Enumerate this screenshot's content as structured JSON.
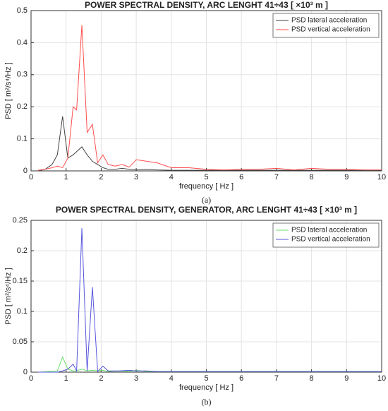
{
  "chart_data": [
    {
      "type": "line",
      "title": "POWER SPECTRAL DENSITY, ARC LENGHT 41÷43 [ ×10³ m ]",
      "x_label": "frequency [ Hz ]",
      "y_label": "PSD [ m²/s⁴/Hz ]",
      "caption": "(a)",
      "x": [
        0.2,
        0.4,
        0.6,
        0.75,
        0.9,
        1.05,
        1.2,
        1.3,
        1.45,
        1.6,
        1.75,
        1.9,
        2.05,
        2.2,
        2.4,
        2.6,
        2.8,
        3.0,
        3.3,
        3.6,
        4.0,
        4.5,
        5,
        5.5,
        6,
        6.5,
        7,
        7.5,
        8,
        8.5,
        9,
        9.5,
        10
      ],
      "series": [
        {
          "name": "PSD lateral acceleration",
          "color": "#444444",
          "values": [
            0,
            0.005,
            0.02,
            0.05,
            0.17,
            0.04,
            0.05,
            0.06,
            0.075,
            0.05,
            0.03,
            0.02,
            0.01,
            0.005,
            0.005,
            0.008,
            0.005,
            0.003,
            0.005,
            0.003,
            0.002,
            0.002,
            0.002,
            0.002,
            0.002,
            0.002,
            0.002,
            0.002,
            0.002,
            0.002,
            0.002,
            0.002,
            0.002
          ]
        },
        {
          "name": "PSD vertical acceleration",
          "color": "#ff4d4d",
          "values": [
            0.002,
            0.005,
            0.01,
            0.015,
            0.01,
            0.04,
            0.2,
            0.19,
            0.455,
            0.12,
            0.145,
            0.025,
            0.05,
            0.02,
            0.015,
            0.02,
            0.012,
            0.035,
            0.03,
            0.025,
            0.01,
            0.01,
            0.005,
            0.003,
            0.005,
            0.005,
            0.008,
            0.003,
            0.008,
            0.005,
            0.005,
            0.003,
            0.003
          ]
        }
      ],
      "xlim": [
        0,
        10
      ],
      "xticks": [
        0,
        1,
        2,
        3,
        4,
        5,
        6,
        7,
        8,
        9,
        10
      ],
      "ylim": [
        0,
        0.5
      ],
      "yticks": [
        0,
        0.1,
        0.2,
        0.3,
        0.4,
        0.5
      ],
      "grid": true,
      "legend": "upper right"
    },
    {
      "type": "line",
      "title": "POWER SPECTRAL DENSITY, GENERATOR, ARC LENGHT  41÷43 [ ×10³ m ]",
      "x_label": "frequency [ Hz ]",
      "y_label": "PSD [ m²/s⁴/Hz ]",
      "caption": "(b)",
      "x": [
        0.2,
        0.5,
        0.75,
        0.9,
        1.05,
        1.2,
        1.3,
        1.45,
        1.6,
        1.75,
        1.9,
        2.05,
        2.2,
        2.5,
        2.8,
        3.0,
        3.3,
        3.6,
        4,
        5,
        6,
        7,
        8,
        9,
        10
      ],
      "series": [
        {
          "name": "PSD lateral acceleration",
          "color": "#66e066",
          "values": [
            0,
            0.001,
            0.002,
            0.025,
            0.005,
            0.002,
            0.002,
            0.005,
            0.002,
            0.003,
            0.002,
            0.003,
            0.001,
            0.002,
            0.001,
            0.003,
            0.001,
            0.001,
            0.001,
            0.001,
            0.001,
            0.001,
            0.001,
            0.001,
            0.001
          ]
        },
        {
          "name": "PSD vertical acceleration",
          "color": "#5555dd",
          "values": [
            0,
            0,
            0,
            0.002,
            0.005,
            0.013,
            0.002,
            0.237,
            0.002,
            0.14,
            0.001,
            0.01,
            0.002,
            0.002,
            0.003,
            0.002,
            0.002,
            0.001,
            0.001,
            0.001,
            0.001,
            0.001,
            0.001,
            0.001,
            0.001
          ]
        }
      ],
      "xlim": [
        0,
        10
      ],
      "xticks": [
        0,
        1,
        2,
        3,
        4,
        5,
        6,
        7,
        8,
        9,
        10
      ],
      "ylim": [
        0,
        0.25
      ],
      "yticks": [
        0,
        0.05,
        0.1,
        0.15,
        0.2,
        0.25
      ],
      "grid": true,
      "legend": "upper right"
    }
  ]
}
